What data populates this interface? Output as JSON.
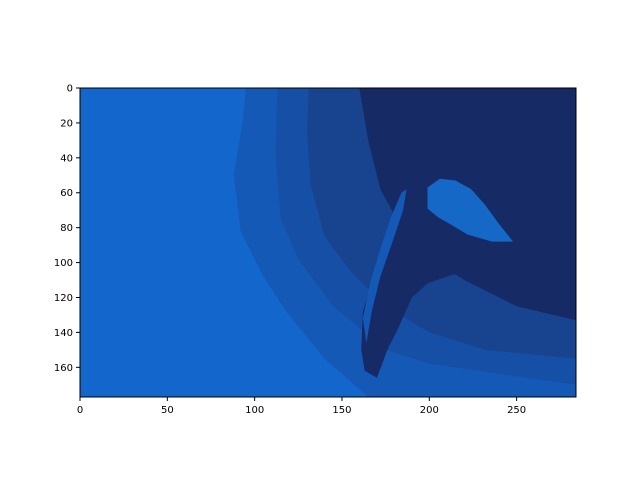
{
  "chart_data": {
    "type": "heatmap",
    "title": "",
    "xlabel": "",
    "ylabel": "",
    "xlim": [
      0,
      284
    ],
    "ylim": [
      177,
      0
    ],
    "x_ticks": [
      0,
      50,
      100,
      150,
      200,
      250
    ],
    "x_tick_labels": [
      "0",
      "50",
      "100",
      "150",
      "200",
      "250"
    ],
    "y_ticks": [
      0,
      20,
      40,
      60,
      80,
      100,
      120,
      140,
      160
    ],
    "y_tick_labels": [
      "0",
      "20",
      "40",
      "60",
      "80",
      "100",
      "120",
      "140",
      "160"
    ],
    "grid": false,
    "colors": {
      "level_1": "#1366cc",
      "level_2": "#1459b6",
      "level_3": "#1550a6",
      "level_4": "#17438f",
      "level_5": "#162a66",
      "highlight": "#1668c6"
    },
    "regions": [
      {
        "level": "level_2",
        "polygon": [
          [
            95,
            0
          ],
          [
            284,
            0
          ],
          [
            284,
            177
          ],
          [
            165,
            177
          ],
          [
            140,
            155
          ],
          [
            118,
            128
          ],
          [
            105,
            108
          ],
          [
            92,
            82
          ],
          [
            88,
            50
          ],
          [
            93,
            20
          ]
        ]
      },
      {
        "level": "level_3",
        "polygon": [
          [
            113,
            0
          ],
          [
            284,
            0
          ],
          [
            284,
            170
          ],
          [
            200,
            158
          ],
          [
            175,
            150
          ],
          [
            145,
            125
          ],
          [
            125,
            98
          ],
          [
            115,
            75
          ],
          [
            112,
            40
          ]
        ]
      },
      {
        "level": "level_4",
        "polygon": [
          [
            131,
            0
          ],
          [
            284,
            0
          ],
          [
            284,
            155
          ],
          [
            232,
            150
          ],
          [
            200,
            140
          ],
          [
            175,
            125
          ],
          [
            155,
            105
          ],
          [
            140,
            85
          ],
          [
            132,
            55
          ],
          [
            130,
            25
          ]
        ]
      },
      {
        "level": "level_5",
        "polygon": [
          [
            160,
            0
          ],
          [
            284,
            0
          ],
          [
            284,
            133
          ],
          [
            250,
            125
          ],
          [
            220,
            110
          ],
          [
            200,
            97
          ],
          [
            184,
            80
          ],
          [
            172,
            58
          ],
          [
            165,
            30
          ]
        ]
      },
      {
        "level": "level_5",
        "polygon": [
          [
            186,
            55
          ],
          [
            194,
            52
          ],
          [
            203,
            57
          ],
          [
            212,
            68
          ],
          [
            220,
            80
          ],
          [
            226,
            94
          ],
          [
            229,
            100
          ],
          [
            222,
            104
          ],
          [
            210,
            108
          ],
          [
            199,
            112
          ],
          [
            190,
            120
          ],
          [
            182,
            138
          ],
          [
            176,
            150
          ],
          [
            170,
            166
          ],
          [
            163,
            162
          ],
          [
            161,
            150
          ],
          [
            162,
            128
          ],
          [
            168,
            108
          ],
          [
            175,
            90
          ],
          [
            180,
            72
          ]
        ]
      },
      {
        "level": "highlight",
        "polygon": [
          [
            199,
            57
          ],
          [
            206,
            52
          ],
          [
            215,
            53
          ],
          [
            224,
            58
          ],
          [
            232,
            67
          ],
          [
            240,
            78
          ],
          [
            248,
            88
          ],
          [
            236,
            88
          ],
          [
            222,
            84
          ],
          [
            212,
            78
          ],
          [
            205,
            74
          ],
          [
            199,
            69
          ]
        ]
      },
      {
        "level": "level_2",
        "polygon": [
          [
            184,
            60
          ],
          [
            187,
            58
          ],
          [
            185,
            70
          ],
          [
            179,
            88
          ],
          [
            172,
            108
          ],
          [
            167,
            128
          ],
          [
            164,
            146
          ],
          [
            162,
            132
          ],
          [
            166,
            112
          ],
          [
            172,
            92
          ],
          [
            178,
            74
          ]
        ]
      }
    ]
  }
}
